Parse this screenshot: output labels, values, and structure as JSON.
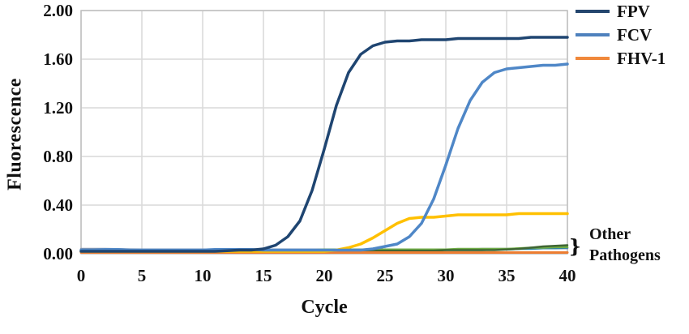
{
  "chart_data": {
    "type": "line",
    "title": "",
    "xlabel": "Cycle",
    "ylabel": "Fluorescence",
    "xlim": [
      0,
      40
    ],
    "ylim": [
      0,
      2.0
    ],
    "grid": true,
    "legend_position": "top-right",
    "x_ticks": [
      {
        "v": 0,
        "label": "0"
      },
      {
        "v": 5,
        "label": "5"
      },
      {
        "v": 10,
        "label": "10"
      },
      {
        "v": 15,
        "label": "15"
      },
      {
        "v": 20,
        "label": "20"
      },
      {
        "v": 25,
        "label": "25"
      },
      {
        "v": 30,
        "label": "30"
      },
      {
        "v": 35,
        "label": "35"
      },
      {
        "v": 40,
        "label": "40"
      }
    ],
    "y_ticks": [
      {
        "v": 0.0,
        "label": "0.00"
      },
      {
        "v": 0.4,
        "label": "0.40"
      },
      {
        "v": 0.8,
        "label": "0.80"
      },
      {
        "v": 1.2,
        "label": "1.20"
      },
      {
        "v": 1.6,
        "label": "1.60"
      },
      {
        "v": 2.0,
        "label": "2.00"
      }
    ],
    "x": [
      0,
      1,
      2,
      3,
      4,
      5,
      6,
      7,
      8,
      9,
      10,
      11,
      12,
      13,
      14,
      15,
      16,
      17,
      18,
      19,
      20,
      21,
      22,
      23,
      24,
      25,
      26,
      27,
      28,
      29,
      30,
      31,
      32,
      33,
      34,
      35,
      36,
      37,
      38,
      39,
      40
    ],
    "series": [
      {
        "name": "other-bluegray",
        "group": "Other Pathogens",
        "color": "#8496B0",
        "width": 2.5,
        "values": [
          0.04,
          0.04,
          0.04,
          0.038,
          0.036,
          0.035,
          0.035,
          0.035,
          0.035,
          0.035,
          0.035,
          0.035,
          0.035,
          0.035,
          0.035,
          0.035,
          0.035,
          0.035,
          0.035,
          0.035,
          0.035,
          0.035,
          0.035,
          0.035,
          0.035,
          0.035,
          0.035,
          0.035,
          0.035,
          0.035,
          0.035,
          0.035,
          0.035,
          0.04,
          0.04,
          0.04,
          0.04,
          0.045,
          0.045,
          0.045,
          0.045
        ]
      },
      {
        "name": "other-teal",
        "group": "Other Pathogens",
        "color": "#31859C",
        "width": 2.5,
        "values": [
          0.03,
          0.03,
          0.03,
          0.03,
          0.03,
          0.03,
          0.03,
          0.03,
          0.03,
          0.03,
          0.03,
          0.03,
          0.03,
          0.03,
          0.03,
          0.03,
          0.03,
          0.03,
          0.03,
          0.03,
          0.03,
          0.03,
          0.03,
          0.03,
          0.03,
          0.03,
          0.03,
          0.03,
          0.03,
          0.03,
          0.03,
          0.03,
          0.03,
          0.03,
          0.035,
          0.035,
          0.04,
          0.04,
          0.045,
          0.045,
          0.05
        ]
      },
      {
        "name": "other-green",
        "group": "Other Pathogens",
        "color": "#70AD47",
        "width": 2.5,
        "values": [
          0.025,
          0.025,
          0.025,
          0.025,
          0.025,
          0.025,
          0.025,
          0.025,
          0.025,
          0.025,
          0.025,
          0.03,
          0.03,
          0.03,
          0.03,
          0.03,
          0.03,
          0.03,
          0.03,
          0.03,
          0.035,
          0.035,
          0.035,
          0.035,
          0.035,
          0.035,
          0.035,
          0.035,
          0.035,
          0.035,
          0.035,
          0.04,
          0.04,
          0.04,
          0.04,
          0.04,
          0.045,
          0.05,
          0.05,
          0.055,
          0.055
        ]
      },
      {
        "name": "other-darkgreen",
        "group": "Other Pathogens",
        "color": "#3F6633",
        "width": 2.5,
        "values": [
          0.02,
          0.02,
          0.02,
          0.02,
          0.02,
          0.02,
          0.02,
          0.02,
          0.02,
          0.02,
          0.02,
          0.02,
          0.02,
          0.02,
          0.02,
          0.02,
          0.02,
          0.02,
          0.02,
          0.02,
          0.02,
          0.02,
          0.02,
          0.02,
          0.025,
          0.025,
          0.025,
          0.025,
          0.025,
          0.025,
          0.03,
          0.03,
          0.03,
          0.03,
          0.03,
          0.035,
          0.04,
          0.05,
          0.06,
          0.065,
          0.07
        ]
      },
      {
        "name": "other-orange",
        "group": "Other Pathogens",
        "color": "#ED7D31",
        "width": 3,
        "values": [
          0.01,
          0.01,
          0.01,
          0.01,
          0.01,
          0.01,
          0.01,
          0.01,
          0.01,
          0.01,
          0.01,
          0.01,
          0.01,
          0.01,
          0.01,
          0.01,
          0.01,
          0.01,
          0.01,
          0.01,
          0.01,
          0.01,
          0.01,
          0.01,
          0.01,
          0.01,
          0.01,
          0.01,
          0.01,
          0.01,
          0.01,
          0.01,
          0.01,
          0.01,
          0.01,
          0.01,
          0.01,
          0.01,
          0.01,
          0.01,
          0.01
        ]
      },
      {
        "name": "FHV-1",
        "group": "target",
        "color": "#FFC000",
        "width": 3.5,
        "values": [
          0.02,
          0.02,
          0.02,
          0.02,
          0.02,
          0.02,
          0.02,
          0.02,
          0.02,
          0.02,
          0.02,
          0.02,
          0.02,
          0.02,
          0.02,
          0.02,
          0.02,
          0.02,
          0.02,
          0.02,
          0.02,
          0.03,
          0.05,
          0.08,
          0.13,
          0.19,
          0.25,
          0.29,
          0.3,
          0.3,
          0.31,
          0.32,
          0.32,
          0.32,
          0.32,
          0.32,
          0.33,
          0.33,
          0.33,
          0.33,
          0.33
        ]
      },
      {
        "name": "FCV",
        "group": "target",
        "color": "#4F87C7",
        "width": 3.5,
        "values": [
          0.03,
          0.03,
          0.035,
          0.035,
          0.03,
          0.03,
          0.03,
          0.03,
          0.03,
          0.03,
          0.03,
          0.035,
          0.035,
          0.035,
          0.035,
          0.03,
          0.03,
          0.03,
          0.03,
          0.03,
          0.03,
          0.03,
          0.03,
          0.03,
          0.04,
          0.06,
          0.08,
          0.14,
          0.25,
          0.45,
          0.73,
          1.03,
          1.26,
          1.41,
          1.49,
          1.52,
          1.53,
          1.54,
          1.55,
          1.55,
          1.56
        ]
      },
      {
        "name": "FPV",
        "group": "target",
        "color": "#1F4571",
        "width": 3.5,
        "values": [
          0.02,
          0.02,
          0.02,
          0.02,
          0.02,
          0.02,
          0.02,
          0.02,
          0.02,
          0.02,
          0.02,
          0.02,
          0.025,
          0.03,
          0.03,
          0.04,
          0.07,
          0.14,
          0.27,
          0.52,
          0.86,
          1.22,
          1.49,
          1.64,
          1.71,
          1.74,
          1.75,
          1.75,
          1.76,
          1.76,
          1.76,
          1.77,
          1.77,
          1.77,
          1.77,
          1.77,
          1.77,
          1.78,
          1.78,
          1.78,
          1.78
        ]
      }
    ]
  },
  "legend": {
    "entries": [
      {
        "label": "FPV",
        "color": "#24466E"
      },
      {
        "label": "FCV",
        "color": "#4E81BD"
      },
      {
        "label": "FHV-1",
        "color": "#F0883B"
      }
    ]
  },
  "annotation": {
    "bracket": "}",
    "line1": "Other",
    "line2": "Pathogens"
  },
  "style_colors": {
    "grid": "#D9D9D9",
    "plot_border": "#BFBFBF",
    "text": "#111111"
  }
}
